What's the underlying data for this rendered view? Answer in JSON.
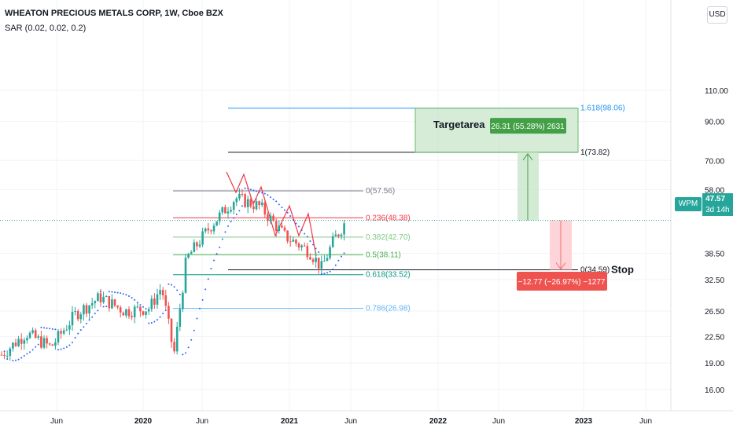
{
  "header": {
    "title": "WHEATON PRECIOUS METALS CORP, 1W, Cboe BZX",
    "indicator": "SAR (0.02, 0.02, 0.2)"
  },
  "currency_button": "USD",
  "price_axis": {
    "labels": [
      "110.00",
      "90.00",
      "70.00",
      "58.00",
      "47.57",
      "38.50",
      "32.50",
      "26.50",
      "22.50",
      "19.00",
      "16.00"
    ]
  },
  "time_axis": {
    "labels": [
      "Jun",
      "2020",
      "Jun",
      "2021",
      "Jun",
      "2022",
      "Jun",
      "2023",
      "Jun"
    ]
  },
  "last_price": {
    "symbol": "WPM",
    "value": "47.57",
    "countdown": "3d 14h"
  },
  "fib_levels": [
    {
      "label": "0(57.56)",
      "price": 57.56,
      "color": "#787b86"
    },
    {
      "label": "0.236(48.38)",
      "price": 48.38,
      "color": "#f23645"
    },
    {
      "label": "0.382(42.70)",
      "price": 42.7,
      "color": "#81c784"
    },
    {
      "label": "0.5(38.11)",
      "price": 38.11,
      "color": "#4caf50"
    },
    {
      "label": "0.618(33.52)",
      "price": 33.52,
      "color": "#089981"
    },
    {
      "label": "0.786(26.98)",
      "price": 26.98,
      "color": "#64b5f6"
    }
  ],
  "extension_levels": [
    {
      "label": "1.618(98.06)",
      "price": 98.06,
      "color": "#2196f3"
    },
    {
      "label": "1(73.82)",
      "price": 73.82,
      "color": "#131722"
    },
    {
      "label": "0(34.59)",
      "price": 34.59,
      "color": "#131722"
    }
  ],
  "annotations": {
    "target_text": "Targetarea",
    "stop_text": "Stop",
    "profit_label": "26.31 (55.28%) 2631",
    "loss_label": "−12.77 (−26.97%) −1277"
  },
  "colors": {
    "up": "#26a69a",
    "down": "#ef5350",
    "target_fill": "#c8e6c9",
    "stop_fill": "#ffcdd2"
  },
  "chart_data": {
    "type": "candlestick",
    "symbol": "WPM",
    "interval": "1W",
    "y_scale": "log",
    "last_close": 47.57,
    "approx_path": [
      [
        "2019-01",
        20
      ],
      [
        "2019-03",
        23
      ],
      [
        "2019-05",
        21
      ],
      [
        "2019-07",
        26
      ],
      [
        "2019-09",
        29
      ],
      [
        "2019-11",
        26.5
      ],
      [
        "2020-01",
        27
      ],
      [
        "2020-02",
        31
      ],
      [
        "2020-03",
        20
      ],
      [
        "2020-04",
        37
      ],
      [
        "2020-06",
        46
      ],
      [
        "2020-08",
        55
      ],
      [
        "2020-10",
        52
      ],
      [
        "2020-12",
        43
      ],
      [
        "2021-02",
        39
      ],
      [
        "2021-03",
        35
      ],
      [
        "2021-04",
        42
      ],
      [
        "2021-05",
        47.57
      ]
    ]
  }
}
